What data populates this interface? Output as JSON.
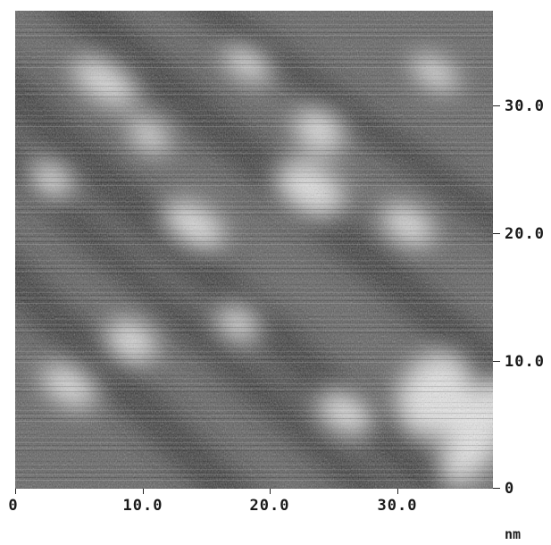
{
  "image": {
    "kind": "grayscale scanning probe micrograph",
    "colors": {
      "dark": "#2a2a2a",
      "mid": "#7c7c7c",
      "light": "#f4f4f4",
      "background": "#ffffff"
    }
  },
  "axes": {
    "x_ticks": [
      "0",
      "10.0",
      "20.0",
      "30.0"
    ],
    "y_ticks": [
      "0",
      "10.0",
      "20.0",
      "30.0"
    ],
    "unit": "nm",
    "range": [
      0,
      37.5
    ]
  }
}
